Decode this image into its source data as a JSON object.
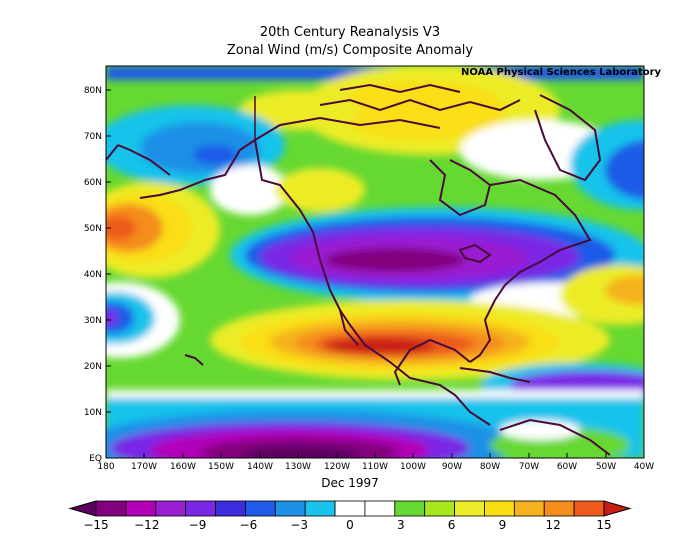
{
  "title_line1": "20th Century Reanalysis V3",
  "title_line2": "Zonal Wind (m/s) Composite Anomaly",
  "credit": "NOAA Physical Sciences Laboratory",
  "date_label": "Dec 1997",
  "map": {
    "region": "North America / Eastern Pacific",
    "lat_labels": [
      "EQ",
      "10N",
      "20N",
      "30N",
      "40N",
      "50N",
      "60N",
      "70N",
      "80N"
    ],
    "lon_labels": [
      "180",
      "170W",
      "160W",
      "150W",
      "140W",
      "130W",
      "120W",
      "110W",
      "100W",
      "90W",
      "80W",
      "70W",
      "60W",
      "50W",
      "40W"
    ]
  },
  "colorbar": {
    "labels": [
      "−15",
      "−12",
      "−9",
      "−6",
      "−3",
      "0",
      "3",
      "6",
      "9",
      "12",
      "15"
    ],
    "colors": [
      "#5a0060",
      "#82007e",
      "#b200b8",
      "#9a1ed2",
      "#7a28e6",
      "#3c2cdc",
      "#1f5ae8",
      "#1e90e6",
      "#19c3eb",
      "#ffffff",
      "#ffffff",
      "#66d832",
      "#a8e61e",
      "#ecec28",
      "#fade14",
      "#f5b21e",
      "#f58c1e",
      "#ec5a1e",
      "#c81e14"
    ]
  }
}
